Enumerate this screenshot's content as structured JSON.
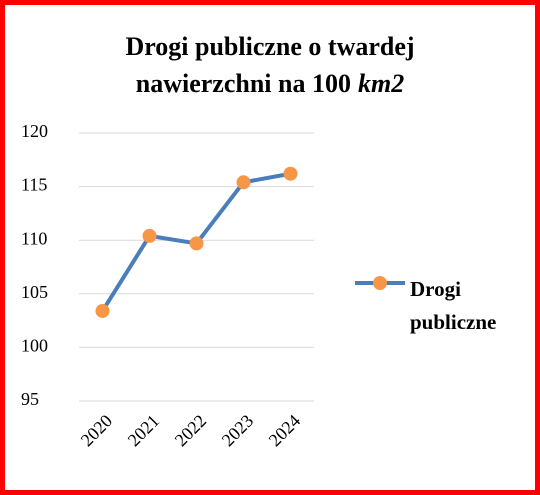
{
  "chart_data": {
    "type": "line",
    "title_lines": [
      "Drogi publiczne o twardej",
      "nawierzchni na 100"
    ],
    "title_unit": "km2",
    "categories": [
      "2020",
      "2021",
      "2022",
      "2023",
      "2024"
    ],
    "series": [
      {
        "name": "Drogi publiczne",
        "color": "#4a7ebb",
        "marker_color": "#f79646",
        "values": [
          103.4,
          110.4,
          109.7,
          115.4,
          116.2
        ]
      }
    ],
    "ylim": [
      95,
      120
    ],
    "yticks": [
      95,
      100,
      105,
      110,
      115,
      120
    ],
    "grid": true,
    "legend": "right"
  }
}
